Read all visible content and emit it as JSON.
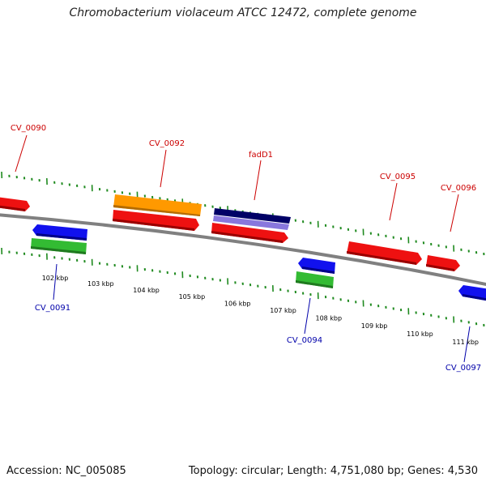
{
  "title": "Chromobacterium violaceum ATCC 12472, complete genome",
  "footer": {
    "accession": "Accession: NC_005085",
    "summary": "Topology: circular; Length: 4,751,080 bp; Genes: 4,530"
  },
  "colors": {
    "backbone": "#808080",
    "tick": "#1f8a1f",
    "forward_label": "#cc0000",
    "reverse_label": "#0000aa",
    "cds_red": "#ee1111",
    "cds_blue": "#1111ee",
    "cds_green": "#33bb33",
    "cds_orange": "#ff9900",
    "cds_navy": "#000066",
    "cds_lavender": "#8877dd"
  },
  "scale_labels": [
    "102 kbp",
    "103 kbp",
    "104 kbp",
    "105 kbp",
    "106 kbp",
    "107 kbp",
    "108 kbp",
    "109 kbp",
    "110 kbp",
    "111 kbp"
  ],
  "gene_labels": {
    "cv_0090": "CV_0090",
    "cv_0092": "CV_0092",
    "fadd1": "fadD1",
    "cv_0095": "CV_0095",
    "cv_0096": "CV_0096",
    "cv_0091": "CV_0091",
    "cv_0094": "CV_0094",
    "cv_0097": "CV_0097"
  }
}
